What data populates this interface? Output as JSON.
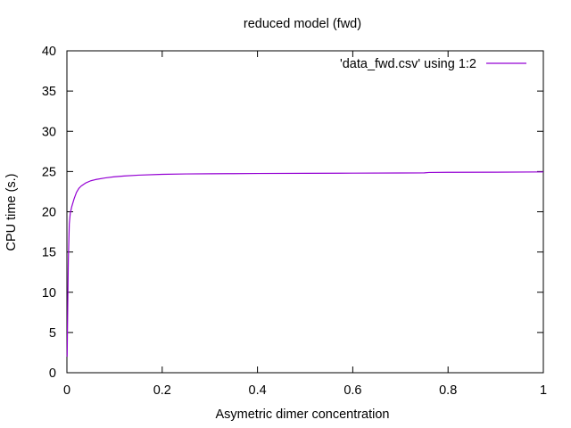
{
  "chart_data": {
    "type": "line",
    "title": "reduced model (fwd)",
    "xlabel": "Asymetric dimer concentration",
    "ylabel": "CPU time (s.)",
    "xlim": [
      0,
      1
    ],
    "ylim": [
      0,
      40
    ],
    "xticks": [
      0,
      0.2,
      0.4,
      0.6,
      0.8,
      1
    ],
    "xtick_labels": [
      "0",
      "0.2",
      "0.4",
      "0.6",
      "0.8",
      "1"
    ],
    "yticks": [
      0,
      5,
      10,
      15,
      20,
      25,
      30,
      35,
      40
    ],
    "ytick_labels": [
      "0",
      "5",
      "10",
      "15",
      "20",
      "25",
      "30",
      "35",
      "40"
    ],
    "grid": false,
    "legend": "top-right",
    "series": [
      {
        "name": "'data_fwd.csv' using 1:2",
        "color": "#9400d3",
        "x": [
          0.0005,
          0.001,
          0.002,
          0.003,
          0.005,
          0.007,
          0.01,
          0.015,
          0.02,
          0.025,
          0.03,
          0.04,
          0.05,
          0.06,
          0.08,
          0.1,
          0.12,
          0.15,
          0.2,
          0.25,
          0.3,
          0.35,
          0.4,
          0.5,
          0.6,
          0.7,
          0.75,
          0.76,
          0.8,
          0.9,
          1.0
        ],
        "y": [
          2.0,
          4.5,
          9.5,
          14.0,
          18.5,
          19.8,
          20.6,
          21.6,
          22.4,
          22.9,
          23.2,
          23.6,
          23.85,
          24.0,
          24.2,
          24.35,
          24.45,
          24.55,
          24.65,
          24.7,
          24.72,
          24.74,
          24.76,
          24.78,
          24.8,
          24.82,
          24.83,
          24.88,
          24.9,
          24.92,
          24.95
        ]
      }
    ]
  }
}
